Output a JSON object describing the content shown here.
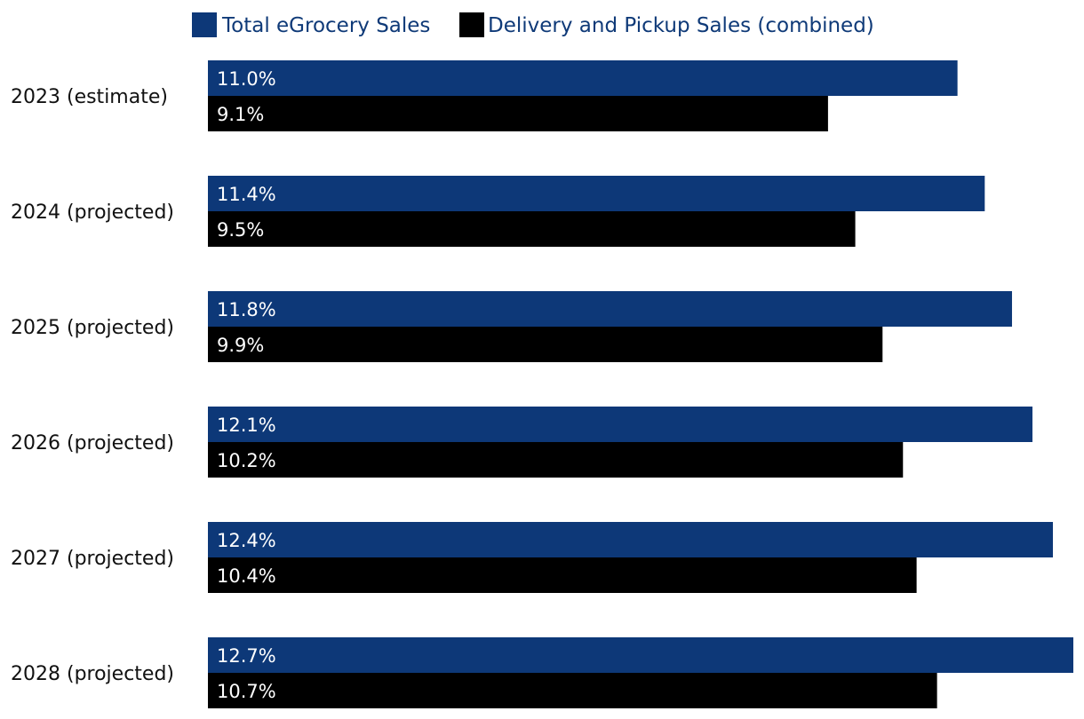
{
  "colors": {
    "total": "#0d3878",
    "delivery": "#000000",
    "legend_text": "#0f3a78"
  },
  "chart_data": {
    "type": "bar",
    "orientation": "horizontal",
    "categories": [
      "2023 (estimate)",
      "2024 (projected)",
      "2025 (projected)",
      "2026 (projected)",
      "2027 (projected)",
      "2028 (projected)"
    ],
    "series": [
      {
        "name": "Total eGrocery Sales",
        "values": [
          11.0,
          11.4,
          11.8,
          12.1,
          12.4,
          12.7
        ],
        "labels": [
          "11.0%",
          "11.4%",
          "11.8%",
          "12.1%",
          "12.4%",
          "12.7%"
        ],
        "color": "#0d3878"
      },
      {
        "name": "Delivery and Pickup Sales (combined)",
        "values": [
          9.1,
          9.5,
          9.9,
          10.2,
          10.4,
          10.7
        ],
        "labels": [
          "9.1%",
          "9.5%",
          "9.9%",
          "10.2%",
          "10.4%",
          "10.7%"
        ],
        "color": "#000000"
      }
    ],
    "xlim": [
      0,
      12.7
    ],
    "grid": false,
    "legend": "top"
  }
}
